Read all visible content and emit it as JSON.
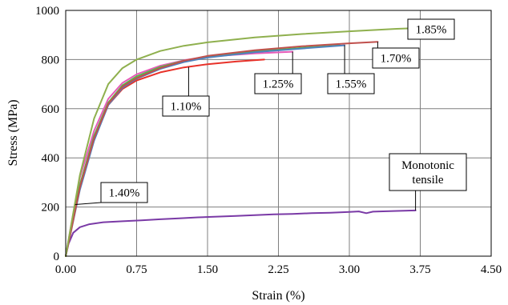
{
  "chart_data": {
    "type": "line",
    "title": "",
    "xlabel": "Strain (%)",
    "ylabel": "Stress (MPa)",
    "xlim": [
      0,
      4.5
    ],
    "ylim": [
      0,
      1000
    ],
    "x_ticks": [
      "0.00",
      "0.75",
      "1.50",
      "2.25",
      "3.00",
      "3.75",
      "4.50"
    ],
    "y_ticks": [
      "0",
      "200",
      "400",
      "600",
      "800",
      "1000"
    ],
    "grid": true,
    "legend": "none",
    "series": [
      {
        "name": "1.85%",
        "color": "#8fb04e",
        "points": [
          [
            0,
            0
          ],
          [
            0.05,
            110
          ],
          [
            0.15,
            330
          ],
          [
            0.3,
            560
          ],
          [
            0.45,
            700
          ],
          [
            0.6,
            765
          ],
          [
            0.75,
            800
          ],
          [
            1.0,
            835
          ],
          [
            1.25,
            856
          ],
          [
            1.5,
            870
          ],
          [
            2.0,
            890
          ],
          [
            2.5,
            904
          ],
          [
            3.0,
            915
          ],
          [
            3.5,
            925
          ],
          [
            3.7,
            928
          ]
        ]
      },
      {
        "name": "1.70%",
        "color": "#c0504d",
        "points": [
          [
            0,
            0
          ],
          [
            0.05,
            90
          ],
          [
            0.15,
            280
          ],
          [
            0.3,
            480
          ],
          [
            0.45,
            620
          ],
          [
            0.6,
            690
          ],
          [
            0.75,
            725
          ],
          [
            1.0,
            765
          ],
          [
            1.25,
            795
          ],
          [
            1.5,
            815
          ],
          [
            2.0,
            838
          ],
          [
            2.5,
            854
          ],
          [
            3.0,
            866
          ],
          [
            3.3,
            872
          ]
        ]
      },
      {
        "name": "1.55%",
        "color": "#4f81bd",
        "points": [
          [
            0,
            0
          ],
          [
            0.05,
            90
          ],
          [
            0.15,
            270
          ],
          [
            0.3,
            470
          ],
          [
            0.45,
            615
          ],
          [
            0.6,
            685
          ],
          [
            0.75,
            722
          ],
          [
            1.0,
            762
          ],
          [
            1.25,
            790
          ],
          [
            1.5,
            808
          ],
          [
            2.0,
            830
          ],
          [
            2.5,
            845
          ],
          [
            2.95,
            858
          ]
        ]
      },
      {
        "name": "1.40%",
        "color": "#55b84a",
        "points": [
          [
            0,
            0
          ],
          [
            0.05,
            100
          ],
          [
            0.15,
            290
          ],
          [
            0.3,
            490
          ],
          [
            0.45,
            625
          ],
          [
            0.6,
            695
          ],
          [
            0.75,
            732
          ],
          [
            1.0,
            770
          ],
          [
            1.25,
            795
          ],
          [
            1.5,
            812
          ],
          [
            2.0,
            833
          ],
          [
            2.5,
            848
          ],
          [
            2.9,
            858
          ]
        ]
      },
      {
        "name": "1.25%",
        "color": "#e75ab8",
        "points": [
          [
            0,
            0
          ],
          [
            0.05,
            110
          ],
          [
            0.15,
            320
          ],
          [
            0.3,
            510
          ],
          [
            0.45,
            640
          ],
          [
            0.6,
            705
          ],
          [
            0.75,
            740
          ],
          [
            1.0,
            775
          ],
          [
            1.25,
            797
          ],
          [
            1.5,
            812
          ],
          [
            2.0,
            825
          ],
          [
            2.4,
            832
          ]
        ]
      },
      {
        "name": "1.10%",
        "color": "#e8322a",
        "points": [
          [
            0,
            0
          ],
          [
            0.05,
            95
          ],
          [
            0.15,
            290
          ],
          [
            0.3,
            480
          ],
          [
            0.45,
            615
          ],
          [
            0.6,
            680
          ],
          [
            0.75,
            715
          ],
          [
            1.0,
            748
          ],
          [
            1.25,
            768
          ],
          [
            1.5,
            781
          ],
          [
            1.8,
            792
          ],
          [
            2.1,
            800
          ]
        ]
      },
      {
        "name": "Monotonic tensile",
        "color": "#7a3aa6",
        "points": [
          [
            0,
            0
          ],
          [
            0.03,
            50
          ],
          [
            0.08,
            95
          ],
          [
            0.15,
            118
          ],
          [
            0.25,
            130
          ],
          [
            0.4,
            138
          ],
          [
            0.6,
            142
          ],
          [
            0.8,
            146
          ],
          [
            1.0,
            150
          ],
          [
            1.2,
            154
          ],
          [
            1.4,
            158
          ],
          [
            1.6,
            161
          ],
          [
            1.8,
            164
          ],
          [
            2.0,
            167
          ],
          [
            2.2,
            170
          ],
          [
            2.4,
            172
          ],
          [
            2.6,
            175
          ],
          [
            2.8,
            177
          ],
          [
            3.0,
            180
          ],
          [
            3.1,
            182
          ],
          [
            3.18,
            175
          ],
          [
            3.25,
            181
          ],
          [
            3.5,
            184
          ],
          [
            3.7,
            186
          ]
        ]
      }
    ],
    "annotations": [
      {
        "text": "1.85%",
        "target": [
          3.7,
          928
        ]
      },
      {
        "text": "1.70%",
        "target": [
          3.3,
          872
        ]
      },
      {
        "text": "1.55%",
        "target": [
          2.95,
          858
        ]
      },
      {
        "text": "1.25%",
        "target": [
          2.4,
          832
        ]
      },
      {
        "text": "1.10%",
        "target": [
          1.3,
          770
        ]
      },
      {
        "text": "1.40%",
        "target": [
          0.1,
          210
        ]
      },
      {
        "text": "Monotonic\ntensile",
        "target": [
          3.7,
          186
        ]
      }
    ]
  }
}
